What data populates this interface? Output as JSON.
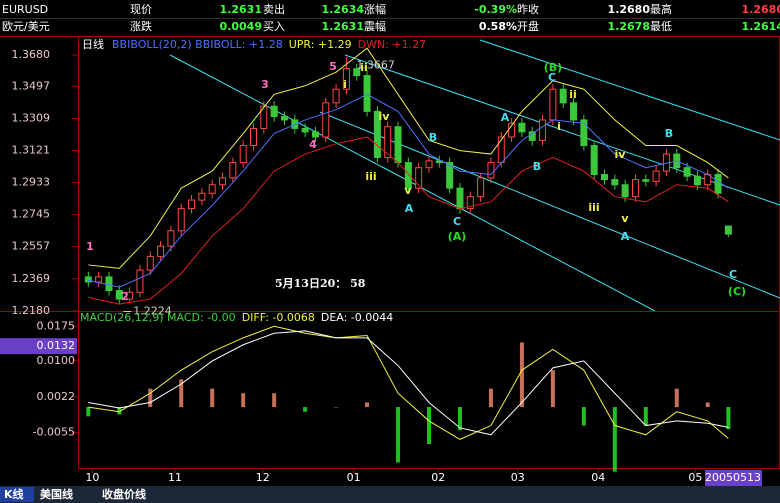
{
  "header": {
    "rows": [
      [
        "EURUSD",
        "现价",
        "1.2631",
        "卖出",
        "1.2634",
        "涨幅",
        "-0.39%",
        "昨收",
        "1.2680",
        "最高",
        "1.2680"
      ],
      [
        "欧元/美元",
        "涨跌",
        "0.0049",
        "买入",
        "1.2631",
        "震幅",
        "0.58%",
        "开盘",
        "1.2678",
        "最低",
        "1.2614"
      ]
    ]
  },
  "tabs": [
    "K线",
    "美国线",
    "收盘价线"
  ],
  "date_box": "20050513",
  "chart_data": [
    {
      "type": "candlestick",
      "title": "日线",
      "annotation": "5月13日20： 58",
      "up_color": "#ff4848",
      "down_color": "#3cc83c",
      "x": [
        1,
        2,
        3,
        4,
        5,
        6,
        7,
        8,
        9,
        10,
        11,
        12,
        13,
        14,
        15,
        16,
        17,
        18,
        19,
        20,
        21,
        22,
        23,
        24,
        25,
        26,
        27,
        28,
        29,
        30,
        31,
        32,
        33,
        34,
        35,
        36,
        37,
        38,
        39,
        40,
        41,
        42,
        43,
        44,
        45,
        46,
        47,
        48,
        49,
        50,
        51,
        52,
        53,
        54,
        55,
        56,
        57,
        58,
        59,
        60,
        61,
        62,
        63
      ],
      "open": [
        1.238,
        1.235,
        1.238,
        1.23,
        1.225,
        1.229,
        1.242,
        1.25,
        1.256,
        1.265,
        1.278,
        1.283,
        1.287,
        1.292,
        1.296,
        1.305,
        1.315,
        1.325,
        1.338,
        1.332,
        1.33,
        1.325,
        1.323,
        1.32,
        1.34,
        1.348,
        1.36,
        1.356,
        1.335,
        1.308,
        1.326,
        1.305,
        1.29,
        1.302,
        1.306,
        1.305,
        1.29,
        1.278,
        1.285,
        1.296,
        1.305,
        1.32,
        1.328,
        1.323,
        1.318,
        1.33,
        1.348,
        1.34,
        1.33,
        1.315,
        1.298,
        1.295,
        1.292,
        1.285,
        1.295,
        1.294,
        1.3,
        1.31,
        1.302,
        1.297,
        1.292,
        1.298,
        1.2678
      ],
      "high": [
        1.241,
        1.241,
        1.241,
        1.233,
        1.232,
        1.245,
        1.253,
        1.259,
        1.268,
        1.281,
        1.286,
        1.29,
        1.295,
        1.299,
        1.308,
        1.318,
        1.328,
        1.341,
        1.341,
        1.335,
        1.333,
        1.328,
        1.326,
        1.343,
        1.351,
        1.3667,
        1.363,
        1.359,
        1.338,
        1.329,
        1.329,
        1.308,
        1.305,
        1.309,
        1.309,
        1.308,
        1.293,
        1.288,
        1.299,
        1.308,
        1.323,
        1.331,
        1.331,
        1.326,
        1.333,
        1.351,
        1.351,
        1.343,
        1.333,
        1.318,
        1.301,
        1.298,
        1.295,
        1.298,
        1.298,
        1.303,
        1.313,
        1.313,
        1.305,
        1.3,
        1.301,
        1.301,
        1.268
      ],
      "low": [
        1.232,
        1.232,
        1.227,
        1.2224,
        1.223,
        1.226,
        1.239,
        1.247,
        1.253,
        1.262,
        1.275,
        1.28,
        1.284,
        1.289,
        1.293,
        1.302,
        1.312,
        1.322,
        1.329,
        1.327,
        1.322,
        1.32,
        1.317,
        1.317,
        1.337,
        1.345,
        1.353,
        1.332,
        1.305,
        1.305,
        1.302,
        1.287,
        1.287,
        1.299,
        1.302,
        1.287,
        1.275,
        1.275,
        1.282,
        1.293,
        1.302,
        1.317,
        1.32,
        1.315,
        1.315,
        1.327,
        1.337,
        1.327,
        1.312,
        1.295,
        1.292,
        1.289,
        1.282,
        1.282,
        1.291,
        1.291,
        1.297,
        1.299,
        1.294,
        1.289,
        1.289,
        1.284,
        1.2614
      ],
      "close": [
        1.235,
        1.238,
        1.23,
        1.225,
        1.229,
        1.242,
        1.25,
        1.256,
        1.265,
        1.278,
        1.283,
        1.287,
        1.292,
        1.296,
        1.305,
        1.315,
        1.325,
        1.338,
        1.332,
        1.33,
        1.325,
        1.323,
        1.32,
        1.34,
        1.348,
        1.36,
        1.356,
        1.335,
        1.308,
        1.326,
        1.305,
        1.29,
        1.302,
        1.306,
        1.305,
        1.29,
        1.278,
        1.285,
        1.296,
        1.305,
        1.32,
        1.328,
        1.323,
        1.318,
        1.33,
        1.348,
        1.34,
        1.33,
        1.315,
        1.298,
        1.295,
        1.292,
        1.285,
        1.295,
        1.294,
        1.3,
        1.31,
        1.302,
        1.297,
        1.292,
        1.298,
        1.287,
        1.2631
      ],
      "bands": {
        "x": [
          1,
          4,
          7,
          10,
          13,
          16,
          19,
          22,
          25,
          28,
          31,
          34,
          37,
          40,
          43,
          46,
          49,
          52,
          55,
          58,
          61,
          63
        ],
        "series": [
          {
            "name": "BBIBOLL(20,2) BBIBOLL: +1.28",
            "color": "#5070ff",
            "values": [
              1.236,
              1.232,
              1.24,
              1.262,
              1.28,
              1.3,
              1.322,
              1.33,
              1.336,
              1.345,
              1.335,
              1.31,
              1.3,
              1.298,
              1.318,
              1.33,
              1.328,
              1.31,
              1.302,
              1.306,
              1.298,
              1.29
            ]
          },
          {
            "name": "UPR: +1.29",
            "color": "#f0f040",
            "values": [
              1.245,
              1.243,
              1.262,
              1.29,
              1.3,
              1.322,
              1.345,
              1.35,
              1.358,
              1.372,
              1.345,
              1.318,
              1.312,
              1.31,
              1.335,
              1.353,
              1.348,
              1.33,
              1.315,
              1.315,
              1.305,
              1.296
            ]
          },
          {
            "name": "DWN: +1.27",
            "color": "#e02020",
            "values": [
              1.226,
              1.222,
              1.225,
              1.24,
              1.262,
              1.278,
              1.3,
              1.31,
              1.316,
              1.32,
              1.305,
              1.285,
              1.278,
              1.282,
              1.3,
              1.308,
              1.3,
              1.285,
              1.282,
              1.292,
              1.29,
              1.282
            ]
          }
        ]
      },
      "high_label": {
        "value": 1.3667,
        "label": "1.3667"
      },
      "low_label": {
        "value": 1.2224,
        "label": "1.2224"
      },
      "wave_labels": [
        "1",
        "2",
        "3",
        "4",
        "5",
        "i",
        "ii",
        "iii",
        "iv",
        "v",
        "A",
        "B",
        "C",
        "(A)",
        "A",
        "B",
        "C",
        "(B)",
        "i",
        "ii",
        "iii",
        "iv",
        "v",
        "A",
        "B",
        "C",
        "(C)"
      ],
      "xlim": [
        0,
        68
      ],
      "xticks": [
        {
          "value": 1.4,
          "label": "10"
        },
        {
          "value": 9.4,
          "label": "11"
        },
        {
          "value": 17.9,
          "label": "12"
        },
        {
          "value": 26.7,
          "label": "01"
        },
        {
          "value": 34.9,
          "label": "02"
        },
        {
          "value": 42.6,
          "label": "03"
        },
        {
          "value": 50.4,
          "label": "04"
        },
        {
          "value": 59.8,
          "label": "05"
        }
      ],
      "ylim": [
        1.218,
        1.3786
      ],
      "yticks": [
        {
          "value": 1.368,
          "label": "1.3680"
        },
        {
          "value": 1.3497,
          "label": "1.3497"
        },
        {
          "value": 1.3309,
          "label": "1.3309"
        },
        {
          "value": 1.3121,
          "label": "1.3121"
        },
        {
          "value": 1.2933,
          "label": "1.2933"
        },
        {
          "value": 1.2745,
          "label": "1.2745"
        },
        {
          "value": 1.2557,
          "label": "1.2557"
        },
        {
          "value": 1.2369,
          "label": "1.2369"
        },
        {
          "value": 1.218,
          "label": "1.2180"
        }
      ]
    },
    {
      "type": "macd",
      "up_color": "#c87058",
      "down_color": "#20c020",
      "x": [
        1,
        4,
        7,
        10,
        13,
        16,
        19,
        22,
        25,
        28,
        31,
        34,
        37,
        40,
        43,
        46,
        49,
        52,
        55,
        58,
        61,
        63
      ],
      "series": [
        {
          "name": "MACD(26,12,9) MACD: -0.00",
          "color": "#40d040",
          "values": [
            -0.002,
            -0.0016,
            0.004,
            0.006,
            0.004,
            0.003,
            0.003,
            -0.001,
            0.0,
            0.001,
            -0.012,
            -0.008,
            -0.005,
            0.004,
            0.014,
            0.008,
            -0.004,
            -0.014,
            -0.004,
            0.004,
            0.001,
            -0.0048
          ]
        },
        {
          "name": "DIFF: -0.0068",
          "color": "#f0f040",
          "values": [
            0.0,
            -0.001,
            0.003,
            0.008,
            0.012,
            0.015,
            0.0175,
            0.016,
            0.015,
            0.0155,
            0.003,
            -0.003,
            -0.007,
            -0.004,
            0.008,
            0.0125,
            0.008,
            -0.004,
            -0.006,
            -0.001,
            -0.003,
            -0.0068
          ]
        },
        {
          "name": "DEA: -0.0044",
          "color": "#ffffff",
          "values": [
            0.001,
            -0.0002,
            0.001,
            0.005,
            0.01,
            0.0135,
            0.016,
            0.0165,
            0.015,
            0.015,
            0.009,
            0.001,
            -0.0045,
            -0.006,
            0.001,
            0.0085,
            0.01,
            0.003,
            -0.004,
            -0.003,
            -0.0035,
            -0.0044
          ]
        }
      ],
      "cursor": {
        "value": 0.0132,
        "label": "0.0132"
      },
      "xlim": [
        0,
        68
      ],
      "ylim": [
        -0.0132,
        0.0206
      ],
      "yticks": [
        {
          "value": 0.0175,
          "label": "0.0175"
        },
        {
          "value": 0.01,
          "label": "0.0100"
        },
        {
          "value": 0.0022,
          "label": "0.0022"
        },
        {
          "value": -0.0055,
          "label": "-0.0055"
        }
      ]
    }
  ]
}
